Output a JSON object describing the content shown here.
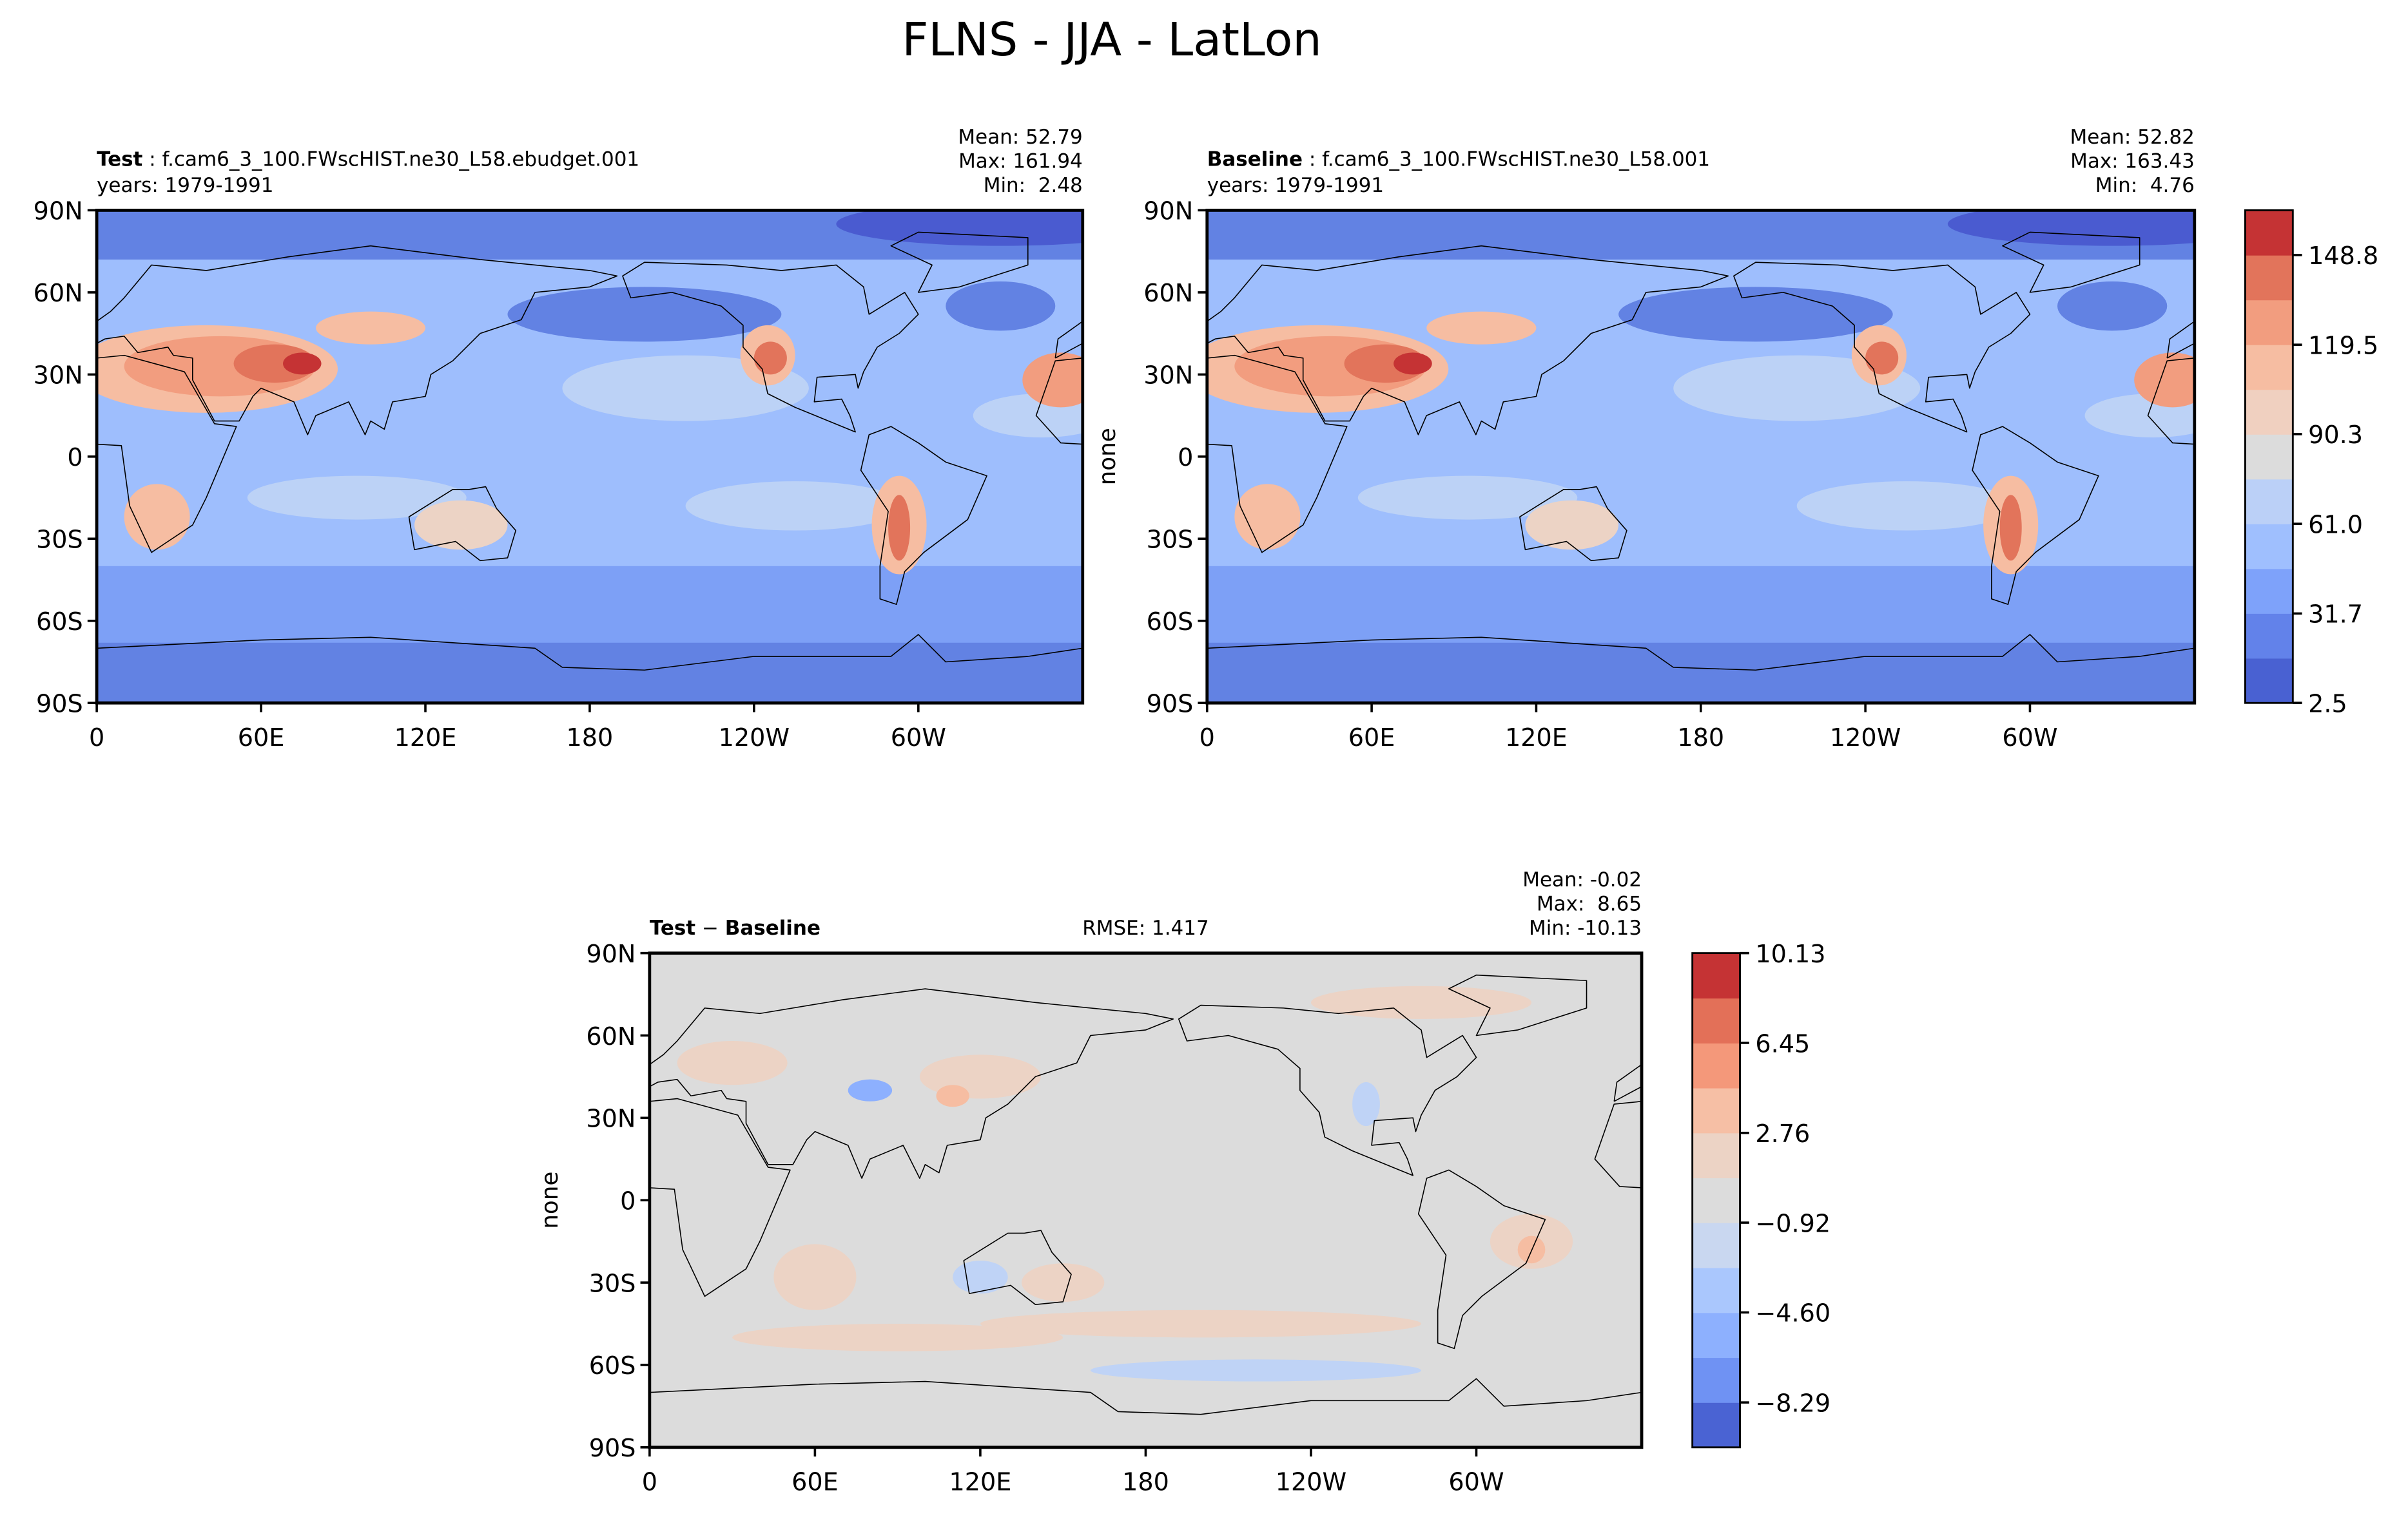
{
  "title": "FLNS - JJA - LatLon",
  "chart_data": [
    {
      "type": "map",
      "title_parts": [
        {
          "text": "Test",
          "bold": true
        },
        {
          "text": " : f.cam6_3_100.FWscHIST.ne30_L58.ebudget.001"
        }
      ],
      "subtitle": "years: 1979-1991",
      "stats": [
        "Mean: 52.79",
        "Max: 161.94",
        "Min:  2.48"
      ],
      "xlim": [
        0,
        360
      ],
      "ylim": [
        -90,
        90
      ],
      "xticks": [
        0,
        {
          "value": 60,
          "label": "60E"
        },
        {
          "value": 120,
          "label": "120E"
        },
        180,
        {
          "value": 240,
          "label": "120W"
        },
        {
          "value": 300,
          "label": "60W"
        }
      ],
      "yticks": [
        {
          "value": -90,
          "label": "90S"
        },
        {
          "value": -60,
          "label": "60S"
        },
        {
          "value": -30,
          "label": "30S"
        },
        0,
        {
          "value": 30,
          "label": "30N"
        },
        {
          "value": 60,
          "label": "60N"
        },
        {
          "value": 90,
          "label": "90N"
        }
      ]
    },
    {
      "type": "map",
      "title_parts": [
        {
          "text": "Baseline",
          "bold": true
        },
        {
          "text": " : f.cam6_3_100.FWscHIST.ne30_L58.001"
        }
      ],
      "subtitle": "years: 1979-1991",
      "stats": [
        "Mean: 52.82",
        "Max: 163.43",
        "Min:  4.76"
      ],
      "ylabel": "none",
      "xlim": [
        0,
        360
      ],
      "ylim": [
        -90,
        90
      ],
      "xticks": [
        0,
        {
          "value": 60,
          "label": "60E"
        },
        {
          "value": 120,
          "label": "120E"
        },
        180,
        {
          "value": 240,
          "label": "120W"
        },
        {
          "value": 300,
          "label": "60W"
        }
      ],
      "yticks": [
        {
          "value": -90,
          "label": "90S"
        },
        {
          "value": -60,
          "label": "60S"
        },
        {
          "value": -30,
          "label": "30S"
        },
        0,
        {
          "value": 30,
          "label": "30N"
        },
        {
          "value": 60,
          "label": "60N"
        },
        {
          "value": 90,
          "label": "90N"
        }
      ],
      "colorbar": {
        "lim": [
          2.48,
          163.43
        ],
        "ticks": [
          {
            "value": 2.5,
            "label": "2.5"
          },
          31.7,
          {
            "value": 61.0,
            "label": "61.0"
          },
          90.3,
          119.5,
          148.8
        ],
        "colors": [
          "#4961d2",
          "#6282ea",
          "#7ea2fa",
          "#9fbffe",
          "#bbd0f7",
          "#dcdcdc",
          "#f0d0c0",
          "#f6bda2",
          "#f29d7f",
          "#e2745b",
          "#c53334"
        ]
      }
    },
    {
      "type": "map",
      "title_parts": [
        {
          "text": "Test",
          "bold": true
        },
        {
          "text": " − "
        },
        {
          "text": "Baseline",
          "bold": true
        }
      ],
      "annotation": "RMSE: 1.417",
      "stats": [
        "Mean: -0.02",
        "Max:  8.65",
        "Min: -10.13"
      ],
      "ylabel": "none",
      "xlim": [
        0,
        360
      ],
      "ylim": [
        -90,
        90
      ],
      "xticks": [
        0,
        {
          "value": 60,
          "label": "60E"
        },
        {
          "value": 120,
          "label": "120E"
        },
        180,
        {
          "value": 240,
          "label": "120W"
        },
        {
          "value": 300,
          "label": "60W"
        }
      ],
      "yticks": [
        {
          "value": -90,
          "label": "90S"
        },
        {
          "value": -60,
          "label": "60S"
        },
        {
          "value": -30,
          "label": "30S"
        },
        0,
        {
          "value": 30,
          "label": "30N"
        },
        {
          "value": 60,
          "label": "60N"
        },
        {
          "value": 90,
          "label": "90N"
        }
      ],
      "colorbar": {
        "lim": [
          -10.13,
          10.13
        ],
        "ticks": [
          {
            "value": -8.29,
            "label": "−8.29"
          },
          {
            "value": -4.6,
            "label": "−4.60"
          },
          {
            "value": -0.92,
            "label": "−0.92"
          },
          2.76,
          6.45,
          10.13
        ],
        "colors": [
          "#4a63d3",
          "#6f92f3",
          "#8db0fe",
          "#aac7fd",
          "#c9d7f0",
          "#dcdcdc",
          "#ecd3c5",
          "#f6bfa5",
          "#f4987a",
          "#e37058",
          "#c53334"
        ]
      }
    }
  ]
}
